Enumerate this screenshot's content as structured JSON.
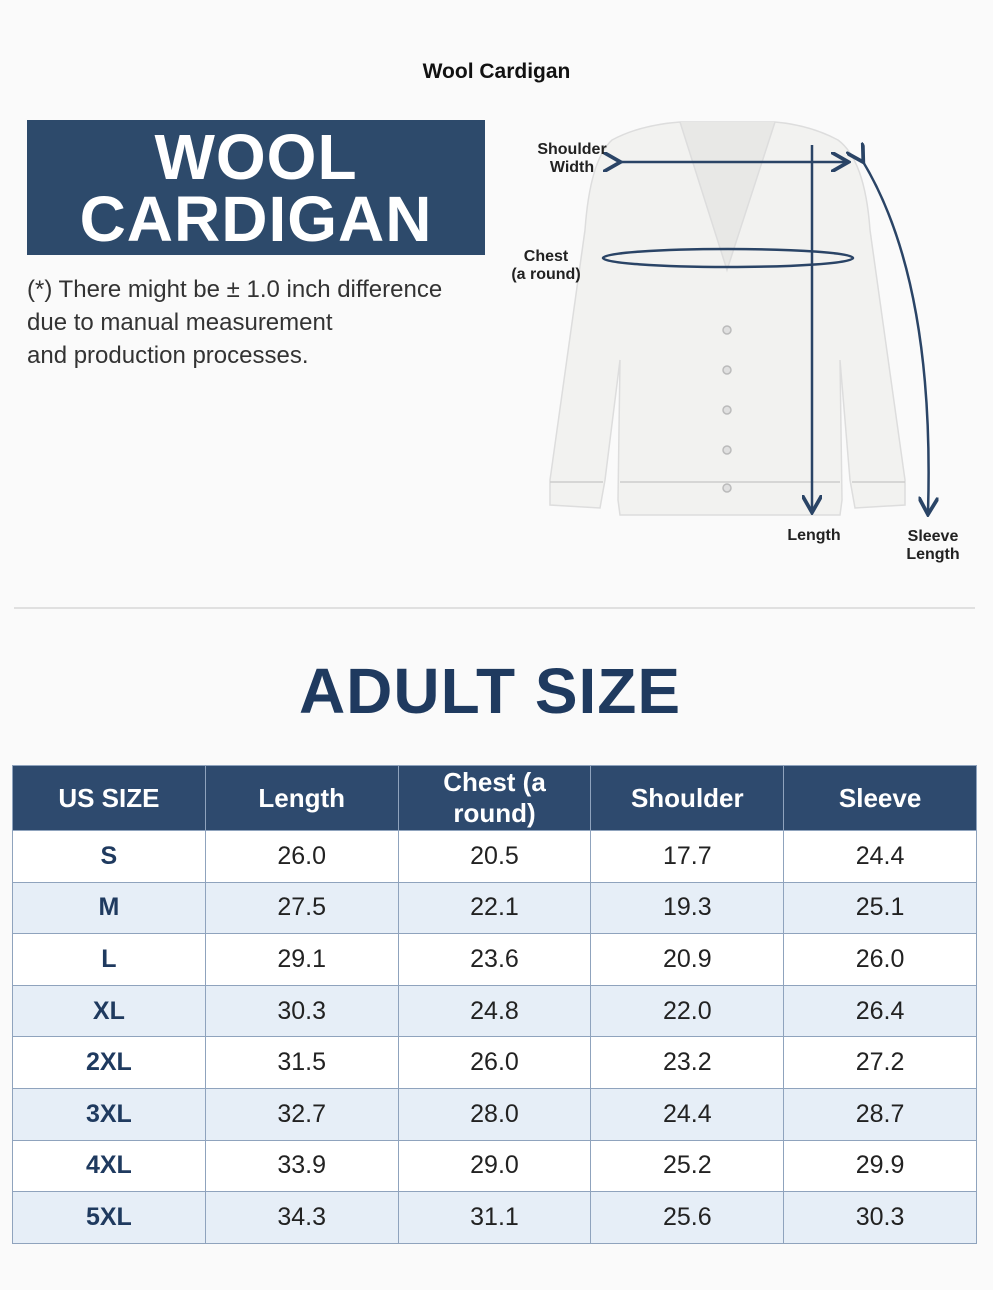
{
  "header": {
    "title": "Wool Cardigan"
  },
  "banner": {
    "lines": [
      "WOOL",
      "CARDIGAN"
    ]
  },
  "note": {
    "lines": [
      "(*) There might be ± 1.0 inch difference",
      "due to manual measurement",
      "and production processes."
    ]
  },
  "diagram": {
    "labels": {
      "shoulder": [
        "Shoulder",
        "Width"
      ],
      "chest": [
        "Chest",
        "(a round)"
      ],
      "length": [
        "Length"
      ],
      "sleeve": [
        "Sleeve",
        "Length"
      ]
    }
  },
  "section": {
    "title": "ADULT SIZE"
  },
  "table": {
    "header": [
      "US SIZE",
      "Length",
      "Chest (a round)",
      "Shoulder",
      "Sleeve"
    ],
    "rows": [
      [
        "S",
        "26.0",
        "20.5",
        "17.7",
        "24.4"
      ],
      [
        "M",
        "27.5",
        "22.1",
        "19.3",
        "25.1"
      ],
      [
        "L",
        "29.1",
        "23.6",
        "20.9",
        "26.0"
      ],
      [
        "XL",
        "30.3",
        "24.8",
        "22.0",
        "26.4"
      ],
      [
        "2XL",
        "31.5",
        "26.0",
        "23.2",
        "27.2"
      ],
      [
        "3XL",
        "32.7",
        "28.0",
        "24.4",
        "28.7"
      ],
      [
        "4XL",
        "33.9",
        "29.0",
        "25.2",
        "29.9"
      ],
      [
        "5XL",
        "34.3",
        "31.1",
        "25.6",
        "30.3"
      ]
    ]
  }
}
